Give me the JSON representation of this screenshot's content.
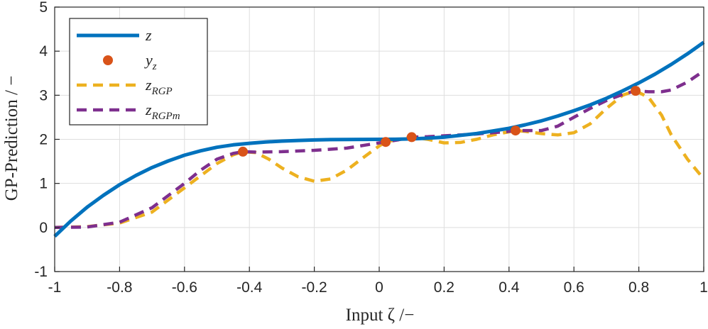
{
  "chart_data": {
    "type": "line",
    "xlabel": "Input ζ /−",
    "ylabel": "GP-Prediction  /  −",
    "xlim": [
      -1,
      1
    ],
    "ylim": [
      -1,
      5
    ],
    "xticks": [
      -1,
      -0.8,
      -0.6,
      -0.4,
      -0.2,
      0,
      0.2,
      0.4,
      0.6,
      0.8,
      1
    ],
    "xtick_labels": [
      "-1",
      "-0.8",
      "-0.6",
      "-0.4",
      "-0.2",
      "0",
      "0.2",
      "0.4",
      "0.6",
      "0.8",
      "1"
    ],
    "yticks": [
      -1,
      0,
      1,
      2,
      3,
      4,
      5
    ],
    "ytick_labels": [
      "-1",
      "0",
      "1",
      "2",
      "3",
      "4",
      "5"
    ],
    "grid": true,
    "legend_position": "top-left",
    "legend": [
      {
        "base": "z",
        "sub": ""
      },
      {
        "base": "y",
        "sub": "z"
      },
      {
        "base": "z",
        "sub": "RGP"
      },
      {
        "base": "z",
        "sub": "RGPm"
      }
    ],
    "colors": {
      "z": "#0072BD",
      "y_z": "#D95319",
      "z_RGP": "#EDB120",
      "z_RGPm": "#7E2F8E"
    },
    "series": [
      {
        "name": "z",
        "style": "solid",
        "x": [
          -1,
          -0.95,
          -0.9,
          -0.85,
          -0.8,
          -0.75,
          -0.7,
          -0.65,
          -0.6,
          -0.55,
          -0.5,
          -0.45,
          -0.4,
          -0.35,
          -0.3,
          -0.25,
          -0.2,
          -0.15,
          -0.1,
          -0.05,
          0,
          0.05,
          0.1,
          0.15,
          0.2,
          0.25,
          0.3,
          0.35,
          0.4,
          0.45,
          0.5,
          0.55,
          0.6,
          0.65,
          0.7,
          0.75,
          0.8,
          0.85,
          0.9,
          0.95,
          1
        ],
        "y": [
          -0.2,
          0.15,
          0.46,
          0.73,
          0.97,
          1.18,
          1.36,
          1.51,
          1.64,
          1.74,
          1.82,
          1.875,
          1.91,
          1.94,
          1.96,
          1.975,
          1.985,
          1.993,
          1.997,
          1.999,
          2.0,
          2.002,
          2.01,
          2.025,
          2.05,
          2.09,
          2.13,
          2.19,
          2.25,
          2.33,
          2.42,
          2.53,
          2.65,
          2.78,
          2.93,
          3.1,
          3.28,
          3.48,
          3.7,
          3.94,
          4.2
        ]
      },
      {
        "name": "y_z",
        "style": "marker",
        "x": [
          -0.42,
          0.02,
          0.1,
          0.42,
          0.79
        ],
        "y": [
          1.72,
          1.94,
          2.05,
          2.2,
          3.1
        ]
      },
      {
        "name": "z_RGP",
        "style": "dashed",
        "x": [
          -1,
          -0.9,
          -0.8,
          -0.7,
          -0.6,
          -0.5,
          -0.45,
          -0.42,
          -0.38,
          -0.34,
          -0.3,
          -0.25,
          -0.2,
          -0.15,
          -0.1,
          -0.05,
          0,
          0.02,
          0.06,
          0.1,
          0.15,
          0.2,
          0.25,
          0.3,
          0.35,
          0.4,
          0.42,
          0.45,
          0.5,
          0.55,
          0.6,
          0.65,
          0.7,
          0.75,
          0.79,
          0.83,
          0.87,
          0.9,
          0.95,
          1
        ],
        "y": [
          0.0,
          0.02,
          0.1,
          0.35,
          0.9,
          1.45,
          1.65,
          1.72,
          1.7,
          1.55,
          1.35,
          1.15,
          1.05,
          1.1,
          1.3,
          1.58,
          1.85,
          1.94,
          2.0,
          2.05,
          2.0,
          1.92,
          1.93,
          2.0,
          2.1,
          2.17,
          2.2,
          2.18,
          2.13,
          2.1,
          2.15,
          2.35,
          2.7,
          3.0,
          3.1,
          2.95,
          2.55,
          2.1,
          1.55,
          1.1
        ]
      },
      {
        "name": "z_RGPm",
        "style": "dashed",
        "x": [
          -1,
          -0.9,
          -0.8,
          -0.7,
          -0.6,
          -0.55,
          -0.5,
          -0.45,
          -0.42,
          -0.38,
          -0.3,
          -0.2,
          -0.1,
          -0.05,
          0,
          0.02,
          0.06,
          0.1,
          0.15,
          0.2,
          0.3,
          0.4,
          0.42,
          0.5,
          0.55,
          0.6,
          0.65,
          0.7,
          0.75,
          0.79,
          0.83,
          0.87,
          0.9,
          0.95,
          1
        ],
        "y": [
          0.0,
          0.01,
          0.12,
          0.45,
          1.0,
          1.3,
          1.55,
          1.68,
          1.72,
          1.71,
          1.72,
          1.75,
          1.8,
          1.86,
          1.92,
          1.94,
          1.99,
          2.05,
          2.06,
          2.08,
          2.12,
          2.18,
          2.2,
          2.2,
          2.3,
          2.5,
          2.7,
          2.88,
          3.02,
          3.1,
          3.08,
          3.08,
          3.12,
          3.3,
          3.55
        ]
      }
    ]
  }
}
